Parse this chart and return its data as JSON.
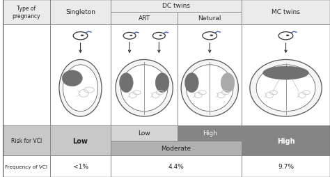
{
  "header_bg": "#ebebeb",
  "light_gray_risk": "#c8c8c8",
  "medium_gray": "#b0b0b0",
  "dark_gray": "#858585",
  "white": "#ffffff",
  "border_color": "#888888",
  "text_color": "#222222",
  "uterus_fill": "#f5f5f5",
  "uterus_inner_fill": "#ececec",
  "placenta_dark": "#707070",
  "placenta_light": "#aaaaaa",
  "fetus_color": "#cccccc",
  "sperm_color": "#333333",
  "sperm_tail_color": "#3355aa",
  "col_boundaries": [
    0.0,
    0.145,
    0.33,
    0.535,
    0.73,
    1.0
  ],
  "r0t": 1.0,
  "r0b": 0.86,
  "r1t": 0.86,
  "r1b": 0.29,
  "r2t": 0.29,
  "r2b": 0.12,
  "r3t": 0.12,
  "r3b": 0.0,
  "header_texts": {
    "type_pregnancy": "Type of\npregnancy",
    "singleton": "Singleton",
    "dc_twins": "DC twins",
    "art": "ART",
    "natural": "Natural",
    "mc_twins": "MC twins"
  },
  "risk_labels": {
    "row_label": "Risk for VCI",
    "singleton": "Low",
    "art": "Low",
    "natural": "High",
    "moderate": "Moderate",
    "mc": "High"
  },
  "freq_labels": {
    "row_label": "Frequency of VCI",
    "singleton": "<1%",
    "dc": "4.4%",
    "mc": "9.7%"
  }
}
